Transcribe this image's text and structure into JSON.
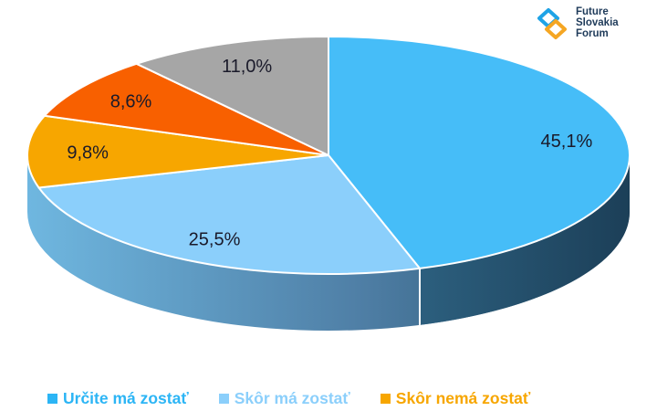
{
  "logo": {
    "lines": [
      "Future",
      "Slovakia",
      "Forum"
    ],
    "icon": "future-slovakia-forum-logo-icon"
  },
  "colors": {
    "slice_1": "#46bdf8",
    "slice_2": "#8bcffb",
    "slice_3": "#f7a600",
    "slice_4": "#f86000",
    "slice_5": "#a6a6a6",
    "logo_text": "#1f3b5a",
    "logo_accent": "#1fa3e6",
    "logo_accent_2": "#f5a623"
  },
  "legend": [
    {
      "label": "Určite má zostať",
      "color": "#2cb5f5"
    },
    {
      "label": "Skôr má zostať",
      "color": "#8bcffb"
    },
    {
      "label": "Skôr nemá zostať",
      "color": "#f7a600"
    }
  ],
  "chart_data": {
    "type": "pie",
    "style": "3d",
    "legend_position": "bottom",
    "categories": [
      "Určite má zostať",
      "Skôr má zostať",
      "Skôr nemá zostať",
      "",
      ""
    ],
    "values": [
      45.1,
      25.5,
      9.8,
      8.6,
      11.0
    ],
    "labels": [
      "45,1%",
      "25,5%",
      "9,8%",
      "8,6%",
      "11,0%"
    ]
  }
}
